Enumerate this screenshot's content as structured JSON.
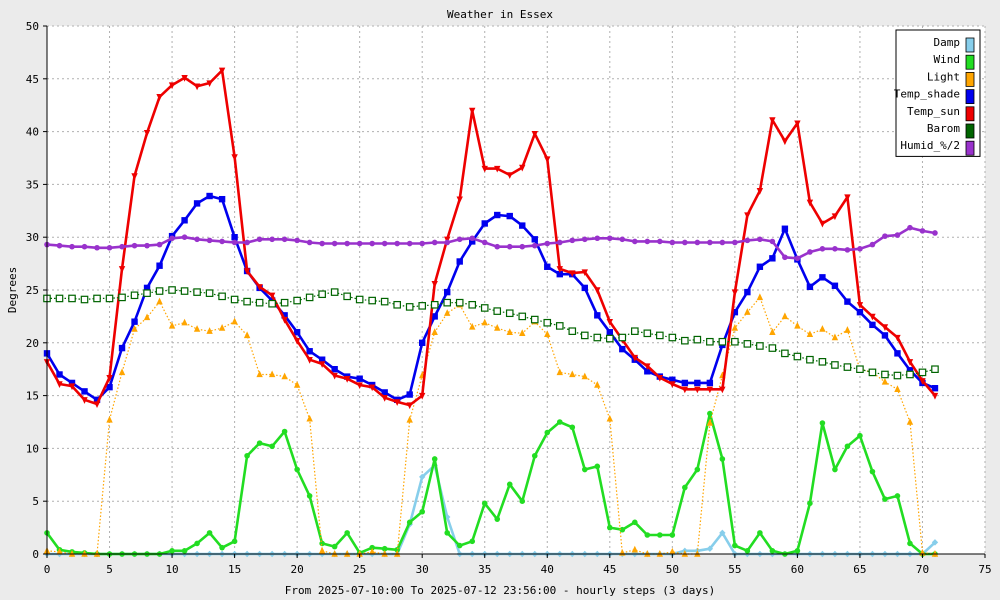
{
  "chart_data": {
    "type": "line",
    "title": "Weather in Essex",
    "xlabel": "From 2025-07-10:00 To 2025-07-12 23:56:00 - hourly steps (3 days)",
    "ylabel": "Degrees",
    "xlim": [
      0,
      75
    ],
    "ylim": [
      0,
      50
    ],
    "xticks": [
      0,
      5,
      10,
      15,
      20,
      25,
      30,
      35,
      40,
      45,
      50,
      55,
      60,
      65,
      70,
      75
    ],
    "yticks": [
      0,
      5,
      10,
      15,
      20,
      25,
      30,
      35,
      40,
      45,
      50
    ],
    "grid": true,
    "legend_position": "top-right",
    "x": [
      0,
      1,
      2,
      3,
      4,
      5,
      6,
      7,
      8,
      9,
      10,
      11,
      12,
      13,
      14,
      15,
      16,
      17,
      18,
      19,
      20,
      21,
      22,
      23,
      24,
      25,
      26,
      27,
      28,
      29,
      30,
      31,
      32,
      33,
      34,
      35,
      36,
      37,
      38,
      39,
      40,
      41,
      42,
      43,
      44,
      45,
      46,
      47,
      48,
      49,
      50,
      51,
      52,
      53,
      54,
      55,
      56,
      57,
      58,
      59,
      60,
      61,
      62,
      63,
      64,
      65,
      66,
      67,
      68,
      69,
      70,
      71
    ],
    "series": [
      {
        "name": "Damp",
        "color": "#87ceeb",
        "marker": "diamond",
        "line": "solid",
        "values": [
          0,
          0,
          0,
          0,
          0,
          0,
          0,
          0,
          0,
          0,
          0,
          0,
          0,
          0,
          0,
          0,
          0,
          0,
          0,
          0,
          0,
          0,
          0,
          0,
          0,
          0,
          0,
          0,
          0,
          2.8,
          7.3,
          8.4,
          3.5,
          0,
          0,
          0,
          0,
          0,
          0,
          0,
          0,
          0,
          0,
          0,
          0,
          0,
          0,
          0,
          0,
          0,
          0,
          0.3,
          0.3,
          0.5,
          2,
          0,
          0,
          0,
          0,
          0,
          0,
          0,
          0,
          0,
          0,
          0,
          0,
          0,
          0,
          0,
          0,
          1.1
        ]
      },
      {
        "name": "Wind",
        "color": "#22dd22",
        "marker": "circle",
        "line": "solid",
        "values": [
          2,
          0.4,
          0.2,
          0.1,
          0,
          0,
          0,
          0,
          0,
          0,
          0.3,
          0.3,
          1,
          2,
          0.6,
          1.2,
          9.3,
          10.5,
          10.2,
          11.6,
          8,
          5.5,
          1,
          0.7,
          2,
          0.1,
          0.6,
          0.5,
          0.4,
          3,
          4,
          9,
          2,
          0.8,
          1.2,
          4.8,
          3.3,
          6.6,
          5,
          9.3,
          11.5,
          12.5,
          12,
          8,
          8.3,
          2.5,
          2.3,
          3,
          1.8,
          1.8,
          1.8,
          6.3,
          8,
          13.3,
          9,
          0.8,
          0.3,
          2,
          0.3,
          0,
          0.3,
          4.8,
          12.4,
          8,
          10.2,
          11.2,
          7.8,
          5.2,
          5.5,
          1,
          0,
          0
        ]
      },
      {
        "name": "Light",
        "color": "#ffa500",
        "marker": "triangle",
        "line": "dotted",
        "values": [
          0.3,
          0.2,
          0,
          0,
          0,
          12.7,
          17.2,
          21.3,
          22.4,
          23.9,
          21.6,
          21.9,
          21.3,
          21.1,
          21.4,
          22,
          20.7,
          17,
          17,
          16.8,
          16,
          12.8,
          0.3,
          0,
          0,
          0,
          0.2,
          0,
          0,
          12.7,
          16.9,
          21,
          22.8,
          23.6,
          21.5,
          21.9,
          21.4,
          21,
          20.9,
          22,
          20.8,
          17.2,
          17,
          16.8,
          16,
          12.8,
          0.1,
          0.4,
          0,
          0,
          0.2,
          0,
          0,
          12.4,
          16.9,
          21.4,
          22.9,
          24.3,
          21,
          22.5,
          21.6,
          20.8,
          21.3,
          20.5,
          21.2,
          17.5,
          17.2,
          16.3,
          15.6,
          12.5,
          0.1,
          0
        ]
      },
      {
        "name": "Temp_shade",
        "color": "#0000ee",
        "marker": "square",
        "line": "solid",
        "values": [
          19,
          17,
          16.2,
          15.4,
          14.6,
          15.8,
          19.5,
          22,
          25.2,
          27.3,
          30.1,
          31.6,
          33.2,
          33.9,
          33.6,
          30,
          26.8,
          25.2,
          24,
          22.6,
          21,
          19.2,
          18.4,
          17.5,
          16.8,
          16.6,
          16,
          15.3,
          14.6,
          15.1,
          20,
          22.5,
          24.8,
          27.7,
          29.6,
          31.3,
          32.1,
          32,
          31.1,
          29.8,
          27.2,
          26.5,
          26.5,
          25.2,
          22.6,
          21,
          19.4,
          18.4,
          17.3,
          16.8,
          16.5,
          16.2,
          16.2,
          16.2,
          19.8,
          22.9,
          24.8,
          27.2,
          28,
          30.8,
          27.9,
          25.3,
          26.2,
          25.4,
          23.9,
          22.9,
          21.7,
          20.7,
          19,
          17.4,
          16.2,
          15.7
        ]
      },
      {
        "name": "Temp_sun",
        "color": "#ee0000",
        "marker": "inv-triangle",
        "line": "solid",
        "values": [
          18.2,
          16.1,
          15.9,
          14.6,
          14.2,
          16.7,
          27,
          35.8,
          39.9,
          43.3,
          44.4,
          45.1,
          44.3,
          44.6,
          45.8,
          37.6,
          26.8,
          25.3,
          24.5,
          22.2,
          20.2,
          18.4,
          18,
          16.9,
          16.6,
          16,
          15.8,
          14.8,
          14.4,
          14.1,
          15,
          25.6,
          29.8,
          33.6,
          42,
          36.5,
          36.5,
          35.9,
          36.6,
          39.8,
          37.4,
          27,
          26.6,
          26.7,
          25,
          22,
          20.3,
          18.6,
          17.8,
          16.7,
          16.1,
          15.6,
          15.6,
          15.6,
          15.6,
          24.8,
          32.1,
          34.4,
          41.1,
          39.1,
          40.8,
          33.3,
          31.3,
          32,
          33.8,
          23.6,
          22.5,
          21.5,
          20.5,
          18.2,
          16.4,
          15
        ]
      },
      {
        "name": "Barom",
        "color": "#006400",
        "marker": "open-square",
        "line": "dotted",
        "values": [
          24.2,
          24.2,
          24.2,
          24.1,
          24.2,
          24.2,
          24.3,
          24.5,
          24.7,
          24.9,
          25,
          24.9,
          24.8,
          24.7,
          24.4,
          24.1,
          23.9,
          23.8,
          23.7,
          23.8,
          24,
          24.3,
          24.6,
          24.8,
          24.4,
          24.1,
          24,
          23.9,
          23.6,
          23.4,
          23.5,
          23.6,
          23.8,
          23.8,
          23.6,
          23.3,
          23,
          22.8,
          22.5,
          22.2,
          21.9,
          21.6,
          21.1,
          20.7,
          20.5,
          20.4,
          20.5,
          21.1,
          20.9,
          20.7,
          20.5,
          20.2,
          20.3,
          20.1,
          20.1,
          20.1,
          19.9,
          19.7,
          19.5,
          19,
          18.7,
          18.4,
          18.2,
          17.9,
          17.7,
          17.5,
          17.2,
          17,
          16.9,
          17,
          17.2,
          17.5
        ]
      },
      {
        "name": "Humid_%/2",
        "color": "#9932cc",
        "marker": "circle",
        "line": "solid",
        "values": [
          29.3,
          29.2,
          29.1,
          29.1,
          29,
          29,
          29.1,
          29.2,
          29.2,
          29.3,
          29.9,
          30,
          29.8,
          29.7,
          29.6,
          29.5,
          29.5,
          29.8,
          29.8,
          29.8,
          29.7,
          29.5,
          29.4,
          29.4,
          29.4,
          29.4,
          29.4,
          29.4,
          29.4,
          29.4,
          29.4,
          29.5,
          29.5,
          29.8,
          29.9,
          29.5,
          29.1,
          29.1,
          29.1,
          29.2,
          29.4,
          29.5,
          29.7,
          29.8,
          29.9,
          29.9,
          29.8,
          29.6,
          29.6,
          29.6,
          29.5,
          29.5,
          29.5,
          29.5,
          29.5,
          29.5,
          29.7,
          29.8,
          29.6,
          28.1,
          28,
          28.6,
          28.9,
          28.9,
          28.8,
          28.9,
          29.3,
          30.1,
          30.2,
          30.9,
          30.6,
          30.4
        ]
      }
    ]
  }
}
